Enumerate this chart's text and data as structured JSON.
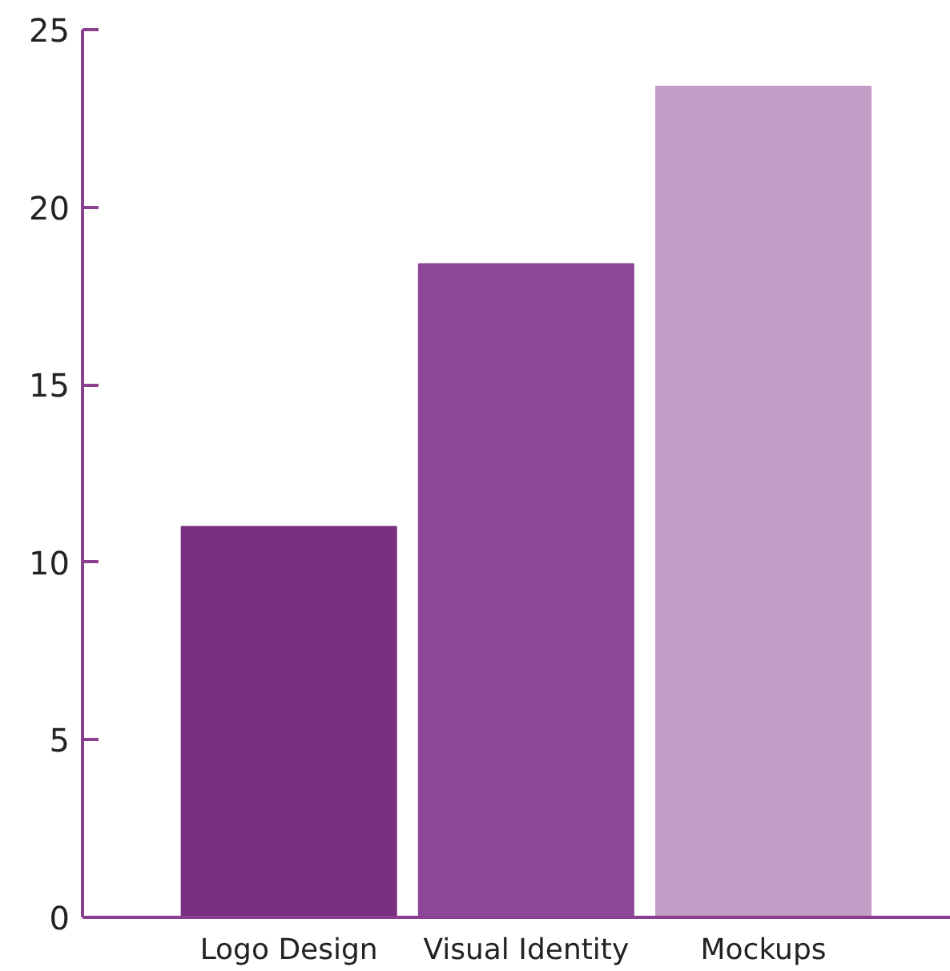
{
  "chart_data": {
    "type": "bar",
    "categories": [
      "Logo Design",
      "Visual Identity",
      "Mockups"
    ],
    "values": [
      11.0,
      18.4,
      23.4
    ],
    "colors": [
      "#7b2f80",
      "#8c4896",
      "#c59ec8"
    ],
    "ylim": [
      0,
      25
    ],
    "yticks": [
      0,
      5,
      10,
      15,
      20,
      25
    ],
    "grid": false
  }
}
